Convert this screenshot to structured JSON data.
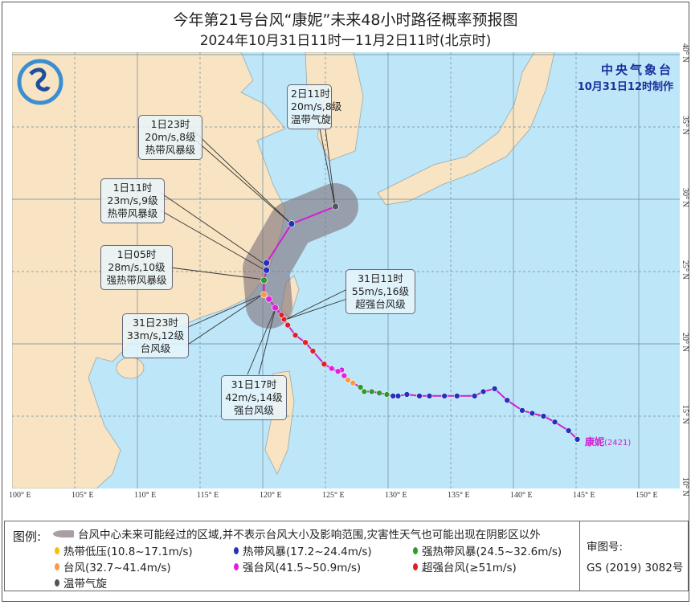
{
  "title": "今年第21号台风“康妮”未来48小时路径概率预报图",
  "subtitle": "2024年10月31日11时一11月2日11时(北京时)",
  "agency": {
    "name": "中央气象台",
    "issued": "10月31日12时制作"
  },
  "storm": {
    "name": "康妮",
    "code": "(2421)",
    "color": "#d11fd0"
  },
  "axes": {
    "lon_labels": [
      "100° E",
      "105° E",
      "110° E",
      "115° E",
      "120° E",
      "125° E",
      "130° E",
      "135° E",
      "140° E",
      "145° E",
      "150° E"
    ],
    "lat_labels": [
      "10° N",
      "15° N",
      "20° N",
      "25° N",
      "30° N",
      "35° N",
      "40° N"
    ]
  },
  "category_colors": {
    "TD": "#f2c200",
    "TS": "#2333b8",
    "STS": "#2e9a2e",
    "TY": "#f59a4a",
    "STY": "#e020e0",
    "SuperTY": "#e02020",
    "EC": "#555555"
  },
  "past_track": [
    {
      "lon": 145.1,
      "lat": 13.4,
      "cat": "TS"
    },
    {
      "lon": 144.4,
      "lat": 14.0,
      "cat": "TS"
    },
    {
      "lon": 143.3,
      "lat": 14.6,
      "cat": "TS"
    },
    {
      "lon": 142.4,
      "lat": 15.0,
      "cat": "TS"
    },
    {
      "lon": 141.5,
      "lat": 15.2,
      "cat": "TS"
    },
    {
      "lon": 140.7,
      "lat": 15.4,
      "cat": "TS"
    },
    {
      "lon": 139.5,
      "lat": 16.1,
      "cat": "TS"
    },
    {
      "lon": 138.5,
      "lat": 16.9,
      "cat": "TS"
    },
    {
      "lon": 137.6,
      "lat": 16.7,
      "cat": "TS"
    },
    {
      "lon": 136.9,
      "lat": 16.4,
      "cat": "TS"
    },
    {
      "lon": 135.5,
      "lat": 16.4,
      "cat": "TS"
    },
    {
      "lon": 134.5,
      "lat": 16.4,
      "cat": "TS"
    },
    {
      "lon": 133.3,
      "lat": 16.4,
      "cat": "TS"
    },
    {
      "lon": 132.5,
      "lat": 16.4,
      "cat": "TS"
    },
    {
      "lon": 131.5,
      "lat": 16.5,
      "cat": "TS"
    },
    {
      "lon": 130.8,
      "lat": 16.4,
      "cat": "TS"
    },
    {
      "lon": 130.4,
      "lat": 16.4,
      "cat": "TS"
    },
    {
      "lon": 129.9,
      "lat": 16.5,
      "cat": "STS"
    },
    {
      "lon": 129.3,
      "lat": 16.6,
      "cat": "STS"
    },
    {
      "lon": 128.7,
      "lat": 16.7,
      "cat": "STS"
    },
    {
      "lon": 128.1,
      "lat": 16.7,
      "cat": "STS"
    },
    {
      "lon": 127.8,
      "lat": 17.0,
      "cat": "STS"
    },
    {
      "lon": 127.2,
      "lat": 17.3,
      "cat": "TY"
    },
    {
      "lon": 126.8,
      "lat": 17.5,
      "cat": "TY"
    },
    {
      "lon": 126.5,
      "lat": 17.8,
      "cat": "STY"
    },
    {
      "lon": 126.3,
      "lat": 18.2,
      "cat": "STY"
    },
    {
      "lon": 126.0,
      "lat": 18.1,
      "cat": "STY"
    },
    {
      "lon": 125.5,
      "lat": 18.3,
      "cat": "STY"
    },
    {
      "lon": 124.9,
      "lat": 18.6,
      "cat": "SuperTY"
    },
    {
      "lon": 124.0,
      "lat": 19.5,
      "cat": "SuperTY"
    },
    {
      "lon": 123.4,
      "lat": 20.1,
      "cat": "SuperTY"
    },
    {
      "lon": 122.6,
      "lat": 20.6,
      "cat": "SuperTY"
    },
    {
      "lon": 122.0,
      "lat": 21.3,
      "cat": "SuperTY"
    },
    {
      "lon": 121.7,
      "lat": 21.7,
      "cat": "SuperTY"
    },
    {
      "lon": 121.5,
      "lat": 22.0,
      "cat": "SuperTY"
    }
  ],
  "forecast_track": [
    {
      "lon": 121.0,
      "lat": 22.5,
      "cat": "STY"
    },
    {
      "lon": 120.5,
      "lat": 23.1,
      "cat": "STY"
    },
    {
      "lon": 120.1,
      "lat": 23.4,
      "cat": "TY"
    },
    {
      "lon": 120.1,
      "lat": 24.4,
      "cat": "STS"
    },
    {
      "lon": 120.3,
      "lat": 25.1,
      "cat": "TS"
    },
    {
      "lon": 120.3,
      "lat": 25.6,
      "cat": "TS"
    },
    {
      "lon": 122.3,
      "lat": 28.3,
      "cat": "TS"
    },
    {
      "lon": 125.8,
      "lat": 29.5,
      "cat": "EC"
    }
  ],
  "labels": [
    {
      "time": "2日11时",
      "wind": "20m/s,8级",
      "level": "温带气旋"
    },
    {
      "time": "1日23时",
      "wind": "20m/s,8级",
      "level": "热带风暴级"
    },
    {
      "time": "1日11时",
      "wind": "23m/s,9级",
      "level": "热带风暴级"
    },
    {
      "time": "1日05时",
      "wind": "28m/s,10级",
      "level": "强热带风暴级"
    },
    {
      "time": "31日23时",
      "wind": "33m/s,12级",
      "level": "台风级"
    },
    {
      "time": "31日17时",
      "wind": "42m/s,14级",
      "level": "强台风级"
    },
    {
      "time": "31日11时",
      "wind": "55m/s,16级",
      "level": "超强台风级"
    }
  ],
  "legend": {
    "heading": "图例:",
    "cone": "台风中心未来可能经过的区域,并不表示台风大小及影响范围,灾害性天气也可能出现在阴影区以外",
    "items": [
      {
        "label": "热带低压(10.8~17.1m/s)",
        "color": "#f2c200"
      },
      {
        "label": "热带风暴(17.2~24.4m/s)",
        "color": "#2333b8"
      },
      {
        "label": "强热带风暴(24.5~32.6m/s)",
        "color": "#2e9a2e"
      },
      {
        "label": "台风(32.7~41.4m/s)",
        "color": "#f59a4a"
      },
      {
        "label": "强台风(41.5~50.9m/s)",
        "color": "#e020e0"
      },
      {
        "label": "超强台风(≥51m/s)",
        "color": "#e02020"
      },
      {
        "label": "温带气旋",
        "color": "#555555"
      }
    ],
    "review_label": "审图号:",
    "review_number": "GS (2019) 3082号"
  }
}
